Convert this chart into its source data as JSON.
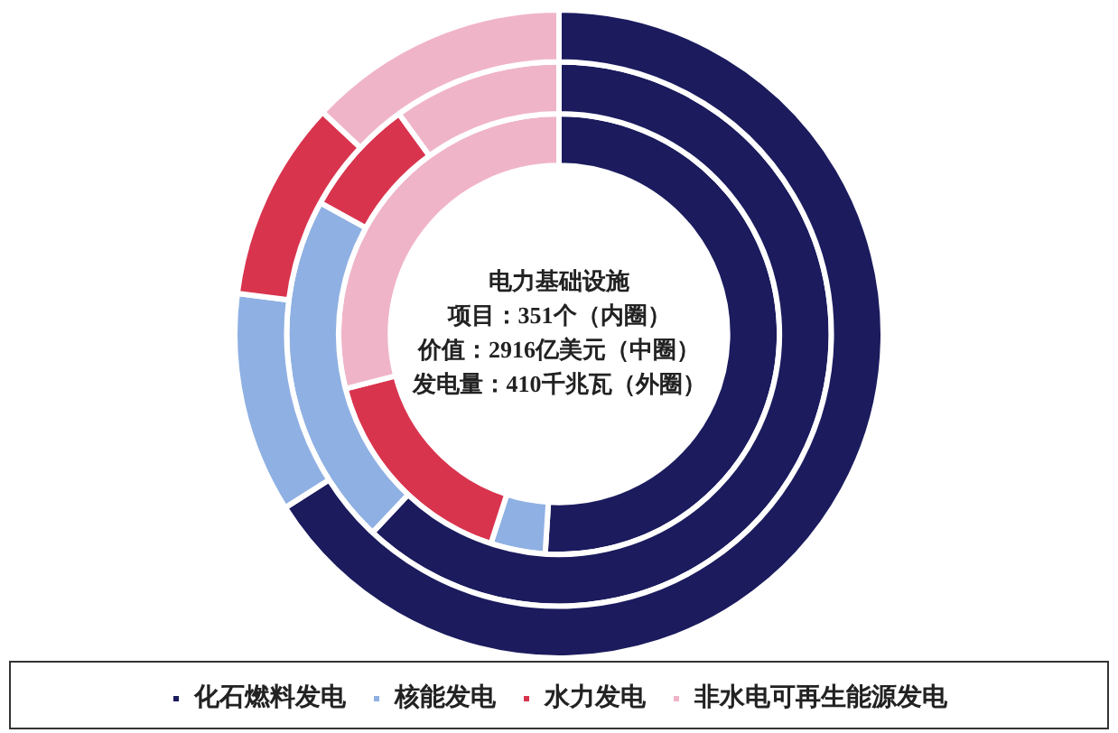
{
  "chart_data": {
    "type": "donut",
    "title": "电力基础设施",
    "annotations": [
      "项目：351个（内圈）",
      "价值：2916亿美元（中圈）",
      "发电量：410千兆瓦（外圈）"
    ],
    "categories": [
      "化石燃料发电",
      "核能发电",
      "水力发电",
      "非水电可再生能源发电"
    ],
    "colors": [
      "#1b1b5e",
      "#8fb0e3",
      "#d9344e",
      "#f0b4c8"
    ],
    "series": [
      {
        "values": [
          66,
          11,
          10,
          13
        ]
      },
      {
        "values": [
          62,
          21,
          7,
          10
        ]
      },
      {
        "values": [
          51,
          4,
          16,
          29
        ]
      }
    ],
    "legend": "bottom"
  }
}
